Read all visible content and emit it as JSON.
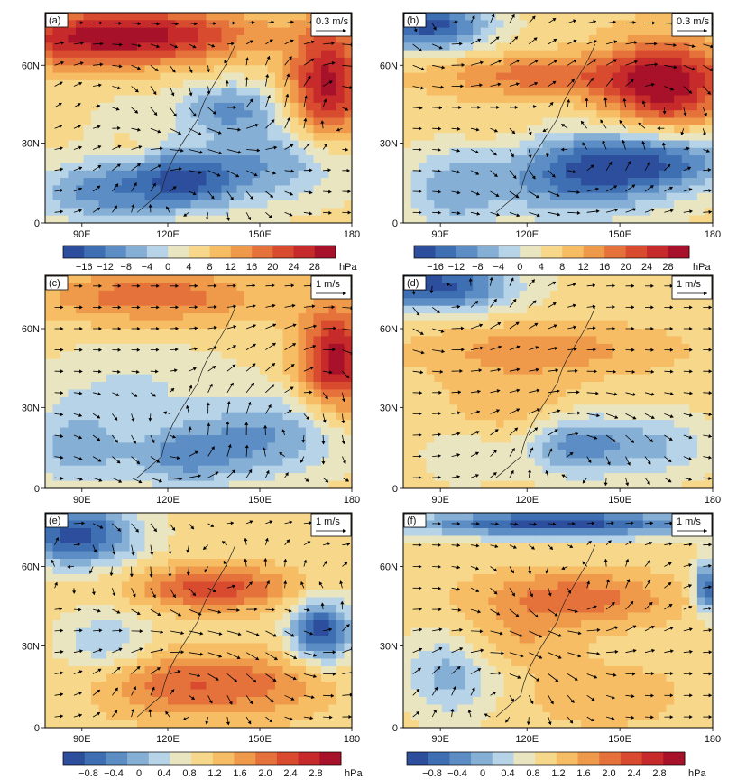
{
  "figure": {
    "panels": [
      {
        "id": "a",
        "label": "(a)",
        "ref_vector": "0.3 m/s",
        "colorbar_group": 0,
        "pattern": "a"
      },
      {
        "id": "b",
        "label": "(b)",
        "ref_vector": "0.3 m/s",
        "colorbar_group": 1,
        "pattern": "b"
      },
      {
        "id": "c",
        "label": "(c)",
        "ref_vector": "1 m/s",
        "colorbar_group": null,
        "pattern": "c"
      },
      {
        "id": "d",
        "label": "(d)",
        "ref_vector": "1 m/s",
        "colorbar_group": null,
        "pattern": "d"
      },
      {
        "id": "e",
        "label": "(e)",
        "ref_vector": "1 m/s",
        "colorbar_group": 2,
        "pattern": "e"
      },
      {
        "id": "f",
        "label": "(f)",
        "ref_vector": "1 m/s",
        "colorbar_group": 3,
        "pattern": "f"
      }
    ],
    "x_ticks": [
      "90E",
      "120E",
      "150E",
      "180"
    ],
    "y_ticks": [
      "60N",
      "30N",
      "0"
    ],
    "colorbars": [
      {
        "ticks": [
          "−16",
          "−12",
          "−8",
          "−4",
          "0",
          "4",
          "8",
          "12",
          "16",
          "20",
          "24",
          "28"
        ],
        "unit": "hPa"
      },
      {
        "ticks": [
          "−16",
          "−12",
          "−8",
          "−4",
          "0",
          "4",
          "8",
          "12",
          "16",
          "20",
          "24",
          "28"
        ],
        "unit": "hPa"
      },
      {
        "ticks": [
          "−0.8",
          "−0.4",
          "0",
          "0.4",
          "0.8",
          "1.2",
          "1.6",
          "2.0",
          "2.4",
          "2.8"
        ],
        "unit": "hPa"
      },
      {
        "ticks": [
          "−0.8",
          "−0.4",
          "0",
          "0.4",
          "0.8",
          "1.2",
          "1.6",
          "2.0",
          "2.4",
          "2.8"
        ],
        "unit": "hPa"
      }
    ],
    "palette": [
      "#2c4e9c",
      "#3d6fb2",
      "#5c8dc4",
      "#86afd6",
      "#b6d3e8",
      "#e9e5c0",
      "#f7d88b",
      "#f6bd65",
      "#ef9a4a",
      "#e6723b",
      "#d84b2f",
      "#c62a2a",
      "#a8112a"
    ]
  }
}
